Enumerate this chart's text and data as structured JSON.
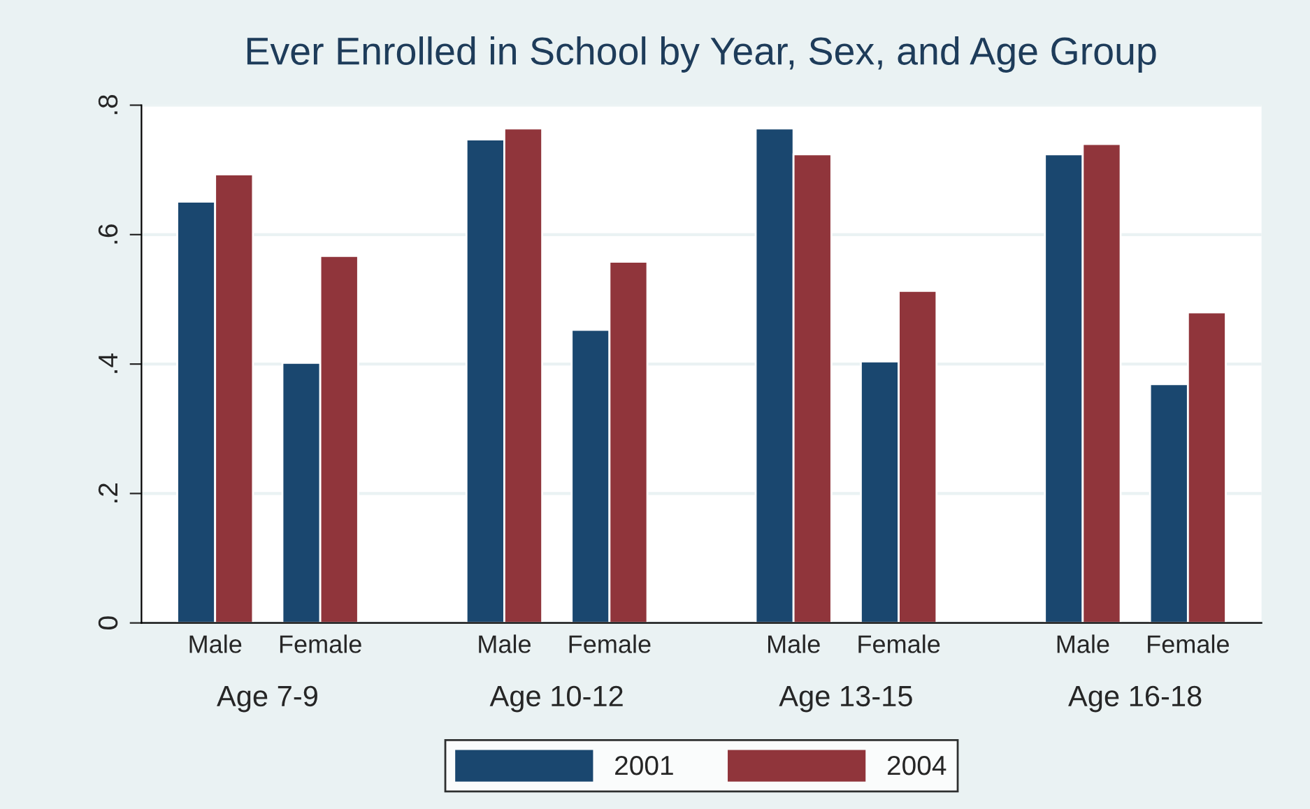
{
  "chart_data": {
    "type": "bar",
    "title": "Ever Enrolled in School by Year, Sex, and Age Group",
    "categories": [
      "Male",
      "Female",
      "Male",
      "Female",
      "Male",
      "Female",
      "Male",
      "Female"
    ],
    "series": [
      {
        "name": "2001",
        "color": "#1a476f",
        "values": [
          0.651,
          0.402,
          0.747,
          0.453,
          0.764,
          0.404,
          0.724,
          0.369
        ]
      },
      {
        "name": "2004",
        "color": "#90353b",
        "values": [
          0.693,
          0.567,
          0.764,
          0.558,
          0.724,
          0.513,
          0.74,
          0.48
        ]
      }
    ],
    "annotations": [
      "Age 7-9",
      "Age 10-12",
      "Age 13-15",
      "Age 16-18"
    ],
    "ylim": [
      0,
      0.8
    ],
    "yticks": [
      {
        "value": 0,
        "label": "0"
      },
      {
        "value": 0.2,
        "label": ".2"
      },
      {
        "value": 0.4,
        "label": ".4"
      },
      {
        "value": 0.6,
        "label": ".6"
      },
      {
        "value": 0.8,
        "label": ".8"
      }
    ],
    "grid": "y",
    "legend": "bottom"
  }
}
